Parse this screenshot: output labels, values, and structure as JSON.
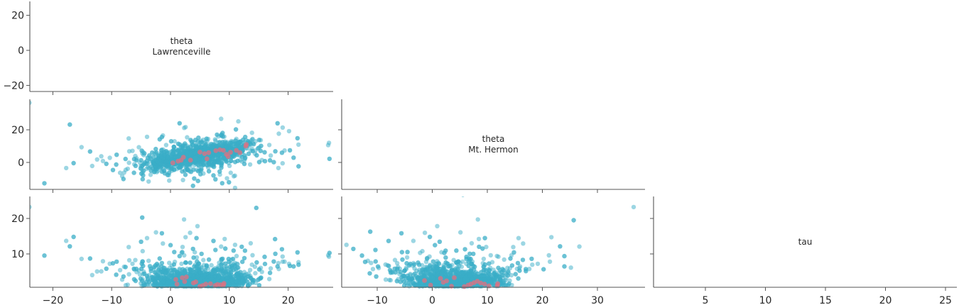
{
  "chart_data": {
    "type": "scatter",
    "title": "",
    "layout": "pair-plot (lower triangle) 3x3",
    "colors": {
      "samples": "#3aaec8",
      "divergences": "#e07080",
      "axis": "#555555",
      "text": "#262626"
    },
    "variables": [
      {
        "name": "theta\nLawrenceville",
        "line1": "theta",
        "line2": "Lawrenceville"
      },
      {
        "name": "theta\nMt. Hermon",
        "line1": "theta",
        "line2": "Mt. Hermon"
      },
      {
        "name": "tau",
        "line1": "tau",
        "line2": ""
      }
    ],
    "axes": {
      "theta_lawrenceville": {
        "range": [
          -24,
          27.5
        ],
        "ticks": [
          -20,
          -10,
          0,
          10,
          20
        ],
        "tick_labels": [
          "−20",
          "−10",
          "0",
          "10",
          "20"
        ]
      },
      "theta_mt_hermon_as_y": {
        "range": [
          -16,
          39
        ],
        "ticks": [
          0,
          20
        ],
        "tick_labels": [
          "0",
          "20"
        ]
      },
      "theta_mt_hermon_as_x": {
        "range": [
          -16,
          39
        ],
        "ticks": [
          -10,
          0,
          10,
          20,
          30
        ],
        "tick_labels": [
          "−10",
          "0",
          "10",
          "20",
          "30"
        ]
      },
      "tau_as_y": {
        "range": [
          0.8,
          26
        ],
        "ticks": [
          10,
          20
        ],
        "tick_labels": [
          "10",
          "20"
        ]
      },
      "tau_as_x": {
        "range": [
          0.8,
          26
        ],
        "ticks": [
          5,
          10,
          15,
          20,
          25
        ],
        "tick_labels": [
          "5",
          "10",
          "15",
          "20",
          "25"
        ]
      },
      "row1_y": {
        "ticks": [
          -20,
          0,
          20
        ],
        "tick_labels": [
          "−20",
          "0",
          "20"
        ]
      }
    },
    "panels": [
      {
        "row": 0,
        "col": 0,
        "kind": "label",
        "text_lines": [
          "theta",
          "Lawrenceville"
        ]
      },
      {
        "row": 1,
        "col": 0,
        "kind": "scatter",
        "x": "theta Lawrenceville",
        "y": "theta Mt. Hermon",
        "sample_summary": {
          "n": 2000,
          "x_mean": 4.5,
          "x_sd": 4.8,
          "y_mean": 4.3,
          "y_sd": 5.2,
          "corr": 0.3
        },
        "divergences": [
          [
            0.4,
            -0.3
          ],
          [
            1.3,
            0.8
          ],
          [
            1.8,
            1.4
          ],
          [
            2.2,
            3.2
          ],
          [
            3.4,
            1.4
          ],
          [
            5.0,
            6.3
          ],
          [
            5.8,
            5.4
          ],
          [
            6.2,
            2.2
          ],
          [
            6.5,
            6.0
          ],
          [
            7.7,
            7.2
          ],
          [
            8.4,
            7.8
          ],
          [
            9.0,
            7.4
          ],
          [
            9.5,
            5.0
          ],
          [
            9.8,
            3.6
          ],
          [
            10.2,
            6.2
          ],
          [
            11.2,
            7.4
          ],
          [
            11.8,
            6.0
          ],
          [
            12.8,
            10.0
          ],
          [
            12.9,
            11.0
          ]
        ]
      },
      {
        "row": 1,
        "col": 1,
        "kind": "label",
        "text_lines": [
          "theta",
          "Mt. Hermon"
        ]
      },
      {
        "row": 2,
        "col": 0,
        "kind": "scatter",
        "x": "theta Lawrenceville",
        "y": "tau",
        "sample_summary": {
          "n": 2000,
          "x_mean": 4.5,
          "x_sd": 4.8,
          "tau_median": 3.6,
          "tau_tail": 6
        },
        "divergences": [
          [
            0.9,
            2.8
          ],
          [
            1.1,
            1.5
          ],
          [
            2.0,
            3.3
          ],
          [
            2.4,
            2.2
          ],
          [
            2.7,
            3.5
          ],
          [
            3.9,
            1.8
          ],
          [
            4.3,
            2.1
          ],
          [
            5.0,
            0.9
          ],
          [
            5.5,
            1.1
          ],
          [
            6.0,
            1.5
          ],
          [
            6.8,
            1.6
          ],
          [
            7.6,
            1.1
          ],
          [
            8.0,
            1.4
          ],
          [
            8.5,
            1.3
          ],
          [
            9.0,
            1.2
          ],
          [
            9.1,
            1.7
          ]
        ]
      },
      {
        "row": 2,
        "col": 1,
        "kind": "scatter",
        "x": "theta Mt. Hermon",
        "y": "tau",
        "sample_summary": {
          "n": 2000,
          "x_mean": 4.3,
          "x_sd": 5.2,
          "tau_median": 3.6,
          "tau_tail": 6
        },
        "divergences": [
          [
            -1.4,
            2.5
          ],
          [
            -0.3,
            1.2
          ],
          [
            1.5,
            3.1
          ],
          [
            2.0,
            2.0
          ],
          [
            2.6,
            2.4
          ],
          [
            3.5,
            0.9
          ],
          [
            4.0,
            3.3
          ],
          [
            5.8,
            0.8
          ],
          [
            6.5,
            1.2
          ],
          [
            7.0,
            1.5
          ],
          [
            7.6,
            1.9
          ],
          [
            8.2,
            2.3
          ],
          [
            8.8,
            1.8
          ],
          [
            9.5,
            1.5
          ],
          [
            10.3,
            1.0
          ],
          [
            11.8,
            1.1
          ],
          [
            11.9,
            1.6
          ]
        ]
      },
      {
        "row": 2,
        "col": 2,
        "kind": "label",
        "text_lines": [
          "tau"
        ]
      }
    ],
    "grid": false,
    "legend": null
  }
}
